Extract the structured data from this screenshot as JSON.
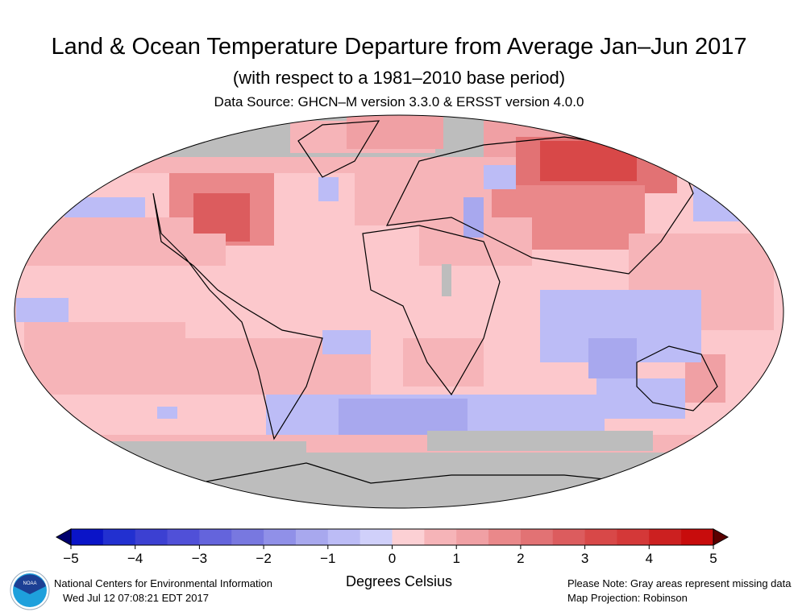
{
  "header": {
    "title": "Land & Ocean Temperature Departure from Average Jan–Jun 2017",
    "subtitle": "(with respect to a 1981–2010 base period)",
    "source": "Data Source: GHCN–M version 3.3.0 & ERSST version 4.0.0"
  },
  "map": {
    "projection_note": "Map Projection: Robinson",
    "missing_color": "#bdbdbd",
    "base_color": "#fcc8cc"
  },
  "colorbar": {
    "unit_label": "Degrees Celsius",
    "ticks": [
      "−5",
      "−4",
      "−3",
      "−2",
      "−1",
      "0",
      "1",
      "2",
      "3",
      "4",
      "5"
    ],
    "range": [
      -5,
      5
    ],
    "step": 0.5,
    "colors": [
      "#0a14c8",
      "#2230d0",
      "#3c40d2",
      "#5050d8",
      "#6464dc",
      "#7878e0",
      "#9090e8",
      "#a8a8ee",
      "#bcbcf6",
      "#d0d0fa",
      "#fcd0d4",
      "#f6b4b8",
      "#f0a0a4",
      "#ea888a",
      "#e27274",
      "#dc5c5e",
      "#d84848",
      "#d43838",
      "#cc2020",
      "#c80c0c"
    ],
    "under_color": "#00006e",
    "over_color": "#5a0000"
  },
  "footer": {
    "org": "National Centers for Environmental Information",
    "timestamp": "Wed Jul 12 07:08:21 EDT 2017",
    "note": "Please Note: Gray areas represent missing data",
    "projection": "Map Projection: Robinson",
    "logo_text": "NOAA"
  }
}
